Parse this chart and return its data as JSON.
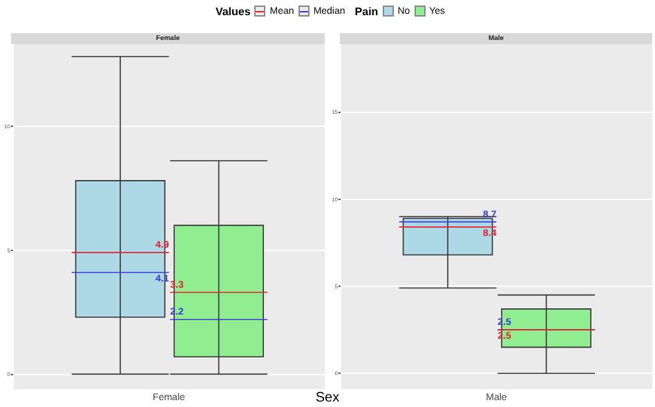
{
  "chart_data": [
    {
      "type": "box",
      "title": "Female",
      "xlabel": "Sex",
      "categories": [
        "Female"
      ],
      "legend_title": "Pain",
      "legend": "top",
      "grid": true,
      "series": [
        {
          "name": "No",
          "color": "#add8e6",
          "boxes": [
            {
              "low": 0,
              "q1": 2.3,
              "median": 4.1,
              "q3": 7.8,
              "high": 12.8,
              "mean": 4.9
            }
          ]
        },
        {
          "name": "Yes",
          "color": "#90ee90",
          "boxes": [
            {
              "low": 0,
              "q1": 0.7,
              "median": 2.2,
              "q3": 6.0,
              "high": 8.6,
              "mean": 3.3
            }
          ]
        }
      ],
      "ylim": [
        -0.6,
        13.3
      ],
      "yticks": [
        0,
        5,
        10
      ],
      "annotations": [
        "Values",
        "Mean",
        "Median",
        {
          "text": "4.1",
          "x": "Female",
          "y": 4.1
        },
        {
          "text": "4.9",
          "x": "Female",
          "y": 4.9
        },
        {
          "text": "2.2",
          "x": "Female",
          "y": 2.2
        },
        {
          "text": "3.3",
          "x": "Female",
          "y": 3.3
        }
      ]
    },
    {
      "type": "box",
      "title": "Male",
      "categories": [
        "Male"
      ],
      "grid": true,
      "series": [
        {
          "name": "No",
          "color": "#add8e6",
          "boxes": [
            {
              "low": 4.9,
              "q1": 6.8,
              "median": 8.7,
              "q3": 8.9,
              "high": 9.0,
              "mean": 8.4
            }
          ]
        },
        {
          "name": "Yes",
          "color": "#90ee90",
          "boxes": [
            {
              "low": 0,
              "q1": 1.5,
              "median": 2.5,
              "q3": 3.7,
              "high": 4.5,
              "mean": 2.5
            }
          ]
        }
      ],
      "ylim": [
        -0.9,
        18.9
      ],
      "yticks": [
        0,
        5,
        10,
        15
      ],
      "annotations": [
        {
          "text": "8.7",
          "x": "Male",
          "y": 8.7
        },
        {
          "text": "8.4",
          "x": "Male",
          "y": 8.4
        },
        {
          "text": "2.5",
          "x": "Male",
          "y": 2.5
        },
        {
          "text": "2.5",
          "x": "Male",
          "y": 2.5
        }
      ]
    }
  ]
}
